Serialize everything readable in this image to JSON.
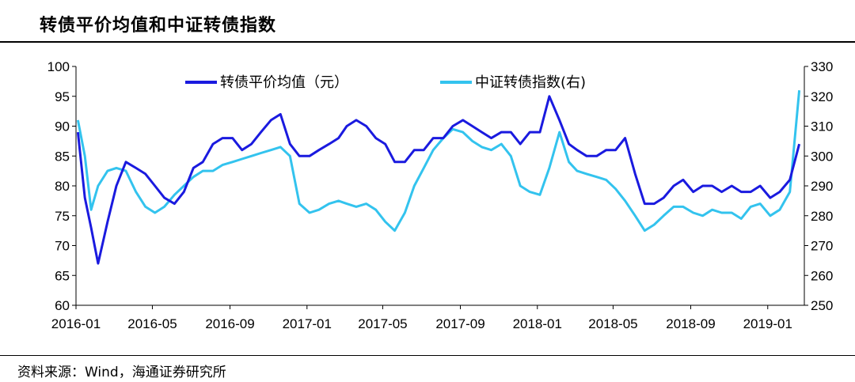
{
  "header": {
    "title": "转债平价均值和中证转债指数"
  },
  "footer": {
    "source": "资料来源：Wind，海通证券研究所"
  },
  "chart_data": {
    "type": "line",
    "title": "转债平价均值和中证转债指数",
    "x_ticks": [
      "2016-01",
      "2016-05",
      "2016-09",
      "2017-01",
      "2017-05",
      "2017-09",
      "2018-01",
      "2018-05",
      "2018-09",
      "2019-01"
    ],
    "y_left": {
      "ticks": [
        60,
        65,
        70,
        75,
        80,
        85,
        90,
        95,
        100
      ],
      "range": [
        60,
        100
      ]
    },
    "y_right": {
      "ticks": [
        250,
        260,
        270,
        280,
        290,
        300,
        310,
        320,
        330
      ],
      "range": [
        250,
        330
      ]
    },
    "legend_position": "top-center",
    "grid": false,
    "colors": {
      "parity": "#1a1adf",
      "index": "#33c3ee"
    },
    "series": [
      {
        "name": "转债平价均值（元）",
        "axis": "left",
        "x": [
          "2016-01-04",
          "2016-01-15",
          "2016-01-25",
          "2016-02-05",
          "2016-02-20",
          "2016-03-05",
          "2016-03-20",
          "2016-04-05",
          "2016-04-20",
          "2016-05-05",
          "2016-05-20",
          "2016-06-05",
          "2016-06-20",
          "2016-07-05",
          "2016-07-20",
          "2016-08-05",
          "2016-08-20",
          "2016-09-05",
          "2016-09-20",
          "2016-10-05",
          "2016-10-20",
          "2016-11-05",
          "2016-11-20",
          "2016-12-05",
          "2016-12-20",
          "2017-01-05",
          "2017-01-20",
          "2017-02-05",
          "2017-02-20",
          "2017-03-05",
          "2017-03-20",
          "2017-04-05",
          "2017-04-20",
          "2017-05-05",
          "2017-05-20",
          "2017-06-05",
          "2017-06-20",
          "2017-07-05",
          "2017-07-20",
          "2017-08-05",
          "2017-08-20",
          "2017-09-05",
          "2017-09-20",
          "2017-10-05",
          "2017-10-20",
          "2017-11-05",
          "2017-11-20",
          "2017-12-05",
          "2017-12-20",
          "2018-01-05",
          "2018-01-20",
          "2018-02-05",
          "2018-02-20",
          "2018-03-05",
          "2018-03-20",
          "2018-04-05",
          "2018-04-20",
          "2018-05-05",
          "2018-05-20",
          "2018-06-05",
          "2018-06-20",
          "2018-07-05",
          "2018-07-20",
          "2018-08-05",
          "2018-08-20",
          "2018-09-05",
          "2018-09-20",
          "2018-10-05",
          "2018-10-20",
          "2018-11-05",
          "2018-11-20",
          "2018-12-05",
          "2018-12-20",
          "2019-01-05",
          "2019-01-20",
          "2019-02-05",
          "2019-02-20"
        ],
        "values": [
          89,
          78,
          73,
          67,
          74,
          80,
          84,
          83,
          82,
          80,
          78,
          77,
          79,
          83,
          84,
          87,
          88,
          88,
          86,
          87,
          89,
          91,
          92,
          87,
          85,
          85,
          86,
          87,
          88,
          90,
          91,
          90,
          88,
          87,
          84,
          84,
          86,
          86,
          88,
          88,
          90,
          91,
          90,
          89,
          88,
          89,
          89,
          87,
          89,
          89,
          95,
          91,
          87,
          86,
          85,
          85,
          86,
          86,
          88,
          82,
          77,
          77,
          78,
          80,
          81,
          79,
          80,
          80,
          79,
          80,
          79,
          79,
          80,
          78,
          79,
          81,
          87
        ]
      },
      {
        "name": "中证转债指数(右)",
        "axis": "right",
        "x": [
          "2016-01-04",
          "2016-01-15",
          "2016-01-25",
          "2016-02-05",
          "2016-02-20",
          "2016-03-05",
          "2016-03-20",
          "2016-04-05",
          "2016-04-20",
          "2016-05-05",
          "2016-05-20",
          "2016-06-05",
          "2016-06-20",
          "2016-07-05",
          "2016-07-20",
          "2016-08-05",
          "2016-08-20",
          "2016-09-05",
          "2016-09-20",
          "2016-10-05",
          "2016-10-20",
          "2016-11-05",
          "2016-11-20",
          "2016-12-05",
          "2016-12-20",
          "2017-01-05",
          "2017-01-20",
          "2017-02-05",
          "2017-02-20",
          "2017-03-05",
          "2017-03-20",
          "2017-04-05",
          "2017-04-20",
          "2017-05-05",
          "2017-05-20",
          "2017-06-05",
          "2017-06-20",
          "2017-07-05",
          "2017-07-20",
          "2017-08-05",
          "2017-08-20",
          "2017-09-05",
          "2017-09-20",
          "2017-10-05",
          "2017-10-20",
          "2017-11-05",
          "2017-11-20",
          "2017-12-05",
          "2017-12-20",
          "2018-01-05",
          "2018-01-20",
          "2018-02-05",
          "2018-02-20",
          "2018-03-05",
          "2018-03-20",
          "2018-04-05",
          "2018-04-20",
          "2018-05-05",
          "2018-05-20",
          "2018-06-05",
          "2018-06-20",
          "2018-07-05",
          "2018-07-20",
          "2018-08-05",
          "2018-08-20",
          "2018-09-05",
          "2018-09-20",
          "2018-10-05",
          "2018-10-20",
          "2018-11-05",
          "2018-11-20",
          "2018-12-05",
          "2018-12-20",
          "2019-01-05",
          "2019-01-20",
          "2019-02-05",
          "2019-02-20"
        ],
        "values": [
          312,
          300,
          282,
          290,
          295,
          296,
          295,
          288,
          283,
          281,
          283,
          287,
          290,
          293,
          295,
          295,
          297,
          298,
          299,
          300,
          301,
          302,
          303,
          300,
          284,
          281,
          282,
          284,
          285,
          284,
          283,
          284,
          282,
          278,
          275,
          281,
          290,
          296,
          302,
          306,
          309,
          308,
          305,
          303,
          302,
          304,
          300,
          290,
          288,
          287,
          296,
          308,
          298,
          295,
          294,
          293,
          292,
          289,
          285,
          280,
          275,
          277,
          280,
          283,
          283,
          281,
          280,
          282,
          281,
          281,
          279,
          283,
          284,
          280,
          282,
          288,
          322
        ]
      }
    ]
  }
}
